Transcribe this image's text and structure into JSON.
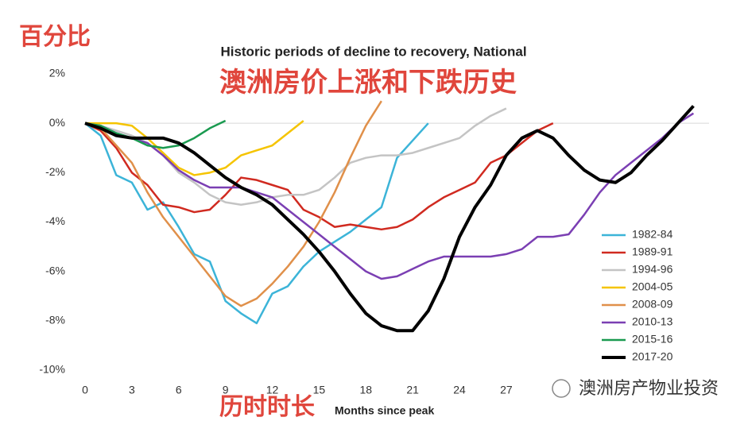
{
  "chart_data": {
    "type": "line",
    "title": "Historic periods of decline to recovery, National",
    "subtitle": "澳洲房价上涨和下跌历史",
    "y_annotation": "百分比",
    "x_annotation": "历时时长",
    "xlabel": "Months since peak",
    "watermark": "澳洲房产物业投资",
    "x": [
      0,
      1,
      2,
      3,
      4,
      5,
      6,
      7,
      8,
      9,
      10,
      11,
      12,
      13,
      14,
      15,
      16,
      17,
      18,
      19,
      20,
      21,
      22,
      23,
      24,
      25,
      26,
      27,
      28,
      29,
      30,
      31,
      32,
      33,
      34,
      35,
      36,
      37,
      38,
      39
    ],
    "xlim": [
      0,
      40
    ],
    "xticks": [
      0,
      3,
      6,
      9,
      12,
      15,
      18,
      21,
      24,
      27
    ],
    "ylim": [
      -10,
      2
    ],
    "yticks": [
      {
        "value": 2,
        "label": "2%"
      },
      {
        "value": 0,
        "label": "0%"
      },
      {
        "value": -2,
        "label": "-2%"
      },
      {
        "value": -4,
        "label": "-4%"
      },
      {
        "value": -6,
        "label": "-6%"
      },
      {
        "value": -8,
        "label": "-8%"
      },
      {
        "value": -10,
        "label": "-10%"
      }
    ],
    "legend": "lower right",
    "series": [
      {
        "name": "1982-84",
        "color": "#3cb4d8",
        "values": [
          0,
          -0.5,
          -2.1,
          -2.4,
          -3.5,
          -3.2,
          -4.2,
          -5.3,
          -5.6,
          -7.2,
          -7.7,
          -8.1,
          -6.9,
          -6.6,
          -5.8,
          -5.2,
          -4.8,
          -4.4,
          -3.9,
          -3.4,
          -1.4,
          -0.7,
          0,
          null,
          null,
          null,
          null,
          null,
          null,
          null,
          null,
          null,
          null,
          null,
          null,
          null,
          null,
          null,
          null,
          null
        ]
      },
      {
        "name": "1989-91",
        "color": "#d02a20",
        "values": [
          0,
          -0.3,
          -1.0,
          -2.0,
          -2.5,
          -3.3,
          -3.4,
          -3.6,
          -3.5,
          -2.9,
          -2.2,
          -2.3,
          -2.5,
          -2.7,
          -3.5,
          -3.8,
          -4.2,
          -4.1,
          -4.2,
          -4.3,
          -4.2,
          -3.9,
          -3.4,
          -3.0,
          -2.7,
          -2.4,
          -1.6,
          -1.3,
          -0.8,
          -0.3,
          0,
          null,
          null,
          null,
          null,
          null,
          null,
          null,
          null,
          null
        ]
      },
      {
        "name": "1994-96",
        "color": "#c4c4c4",
        "values": [
          0,
          -0.1,
          -0.3,
          -0.5,
          -0.8,
          -1.3,
          -2.0,
          -2.4,
          -2.9,
          -3.2,
          -3.3,
          -3.2,
          -3.0,
          -2.9,
          -2.9,
          -2.7,
          -2.2,
          -1.6,
          -1.4,
          -1.3,
          -1.3,
          -1.2,
          -1.0,
          -0.8,
          -0.6,
          -0.1,
          0.3,
          0.6,
          null,
          null,
          null,
          null,
          null,
          null,
          null,
          null,
          null,
          null,
          null,
          null
        ]
      },
      {
        "name": "2004-05",
        "color": "#f5c400",
        "values": [
          0,
          0,
          0,
          -0.1,
          -0.6,
          -1.2,
          -1.8,
          -2.1,
          -2.0,
          -1.8,
          -1.3,
          -1.1,
          -0.9,
          -0.4,
          0.1,
          null,
          null,
          null,
          null,
          null,
          null,
          null,
          null,
          null,
          null,
          null,
          null,
          null,
          null,
          null,
          null,
          null,
          null,
          null,
          null,
          null,
          null,
          null,
          null,
          null
        ]
      },
      {
        "name": "2008-09",
        "color": "#e0904a",
        "values": [
          0,
          -0.2,
          -0.9,
          -1.6,
          -2.8,
          -3.8,
          -4.6,
          -5.4,
          -6.2,
          -7.0,
          -7.4,
          -7.1,
          -6.5,
          -5.8,
          -5.0,
          -4.0,
          -2.8,
          -1.4,
          -0.1,
          0.9,
          null,
          null,
          null,
          null,
          null,
          null,
          null,
          null,
          null,
          null,
          null,
          null,
          null,
          null,
          null,
          null,
          null,
          null,
          null,
          null
        ]
      },
      {
        "name": "2010-13",
        "color": "#7b3fb3",
        "values": [
          0,
          -0.1,
          -0.4,
          -0.6,
          -0.8,
          -1.3,
          -1.9,
          -2.3,
          -2.6,
          -2.6,
          -2.6,
          -2.8,
          -3.0,
          -3.5,
          -4.0,
          -4.5,
          -5.0,
          -5.5,
          -6.0,
          -6.3,
          -6.2,
          -5.9,
          -5.6,
          -5.4,
          -5.4,
          -5.4,
          -5.4,
          -5.3,
          -5.1,
          -4.6,
          -4.6,
          -4.5,
          -3.7,
          -2.8,
          -2.1,
          -1.6,
          -1.1,
          -0.6,
          0,
          0.4
        ]
      },
      {
        "name": "2015-16",
        "color": "#1a9a50",
        "values": [
          0,
          -0.1,
          -0.4,
          -0.6,
          -0.9,
          -1.0,
          -0.9,
          -0.6,
          -0.2,
          0.1,
          null,
          null,
          null,
          null,
          null,
          null,
          null,
          null,
          null,
          null,
          null,
          null,
          null,
          null,
          null,
          null,
          null,
          null,
          null,
          null,
          null,
          null,
          null,
          null,
          null,
          null,
          null,
          null,
          null,
          null
        ]
      },
      {
        "name": "2017-20",
        "color": "#000000",
        "values": [
          0,
          -0.2,
          -0.5,
          -0.6,
          -0.6,
          -0.6,
          -0.8,
          -1.2,
          -1.7,
          -2.2,
          -2.6,
          -2.9,
          -3.3,
          -3.9,
          -4.5,
          -5.2,
          -6.0,
          -6.9,
          -7.7,
          -8.2,
          -8.4,
          -8.4,
          -7.6,
          -6.3,
          -4.6,
          -3.4,
          -2.5,
          -1.3,
          -0.6,
          -0.3,
          -0.6,
          -1.3,
          -1.9,
          -2.3,
          -2.4,
          -2.0,
          -1.3,
          -0.7,
          0,
          0.7
        ]
      }
    ]
  }
}
